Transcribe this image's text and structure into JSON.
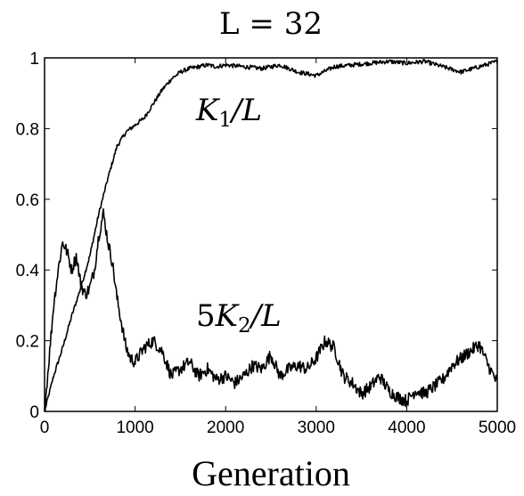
{
  "chart_data": {
    "type": "line",
    "title": "L = 32",
    "xlabel": "Generation",
    "ylabel": "",
    "xlim": [
      0,
      5000
    ],
    "ylim": [
      0,
      1
    ],
    "xticks": [
      0,
      1000,
      2000,
      3000,
      4000,
      5000
    ],
    "xtick_labels": [
      "0",
      "1000",
      "2000",
      "3000",
      "4000",
      "5000"
    ],
    "yticks": [
      0,
      0.2,
      0.4,
      0.6,
      0.8,
      1
    ],
    "ytick_labels": [
      "0",
      "0.2",
      "0.4",
      "0.6",
      "0.8",
      "1"
    ],
    "grid": false,
    "line_color": "#000000",
    "series": [
      {
        "annotation": "K1/L",
        "x": [
          0,
          100,
          200,
          300,
          400,
          500,
          600,
          700,
          800,
          900,
          1000,
          1100,
          1200,
          1300,
          1400,
          1500,
          1600,
          1700,
          1800,
          1900,
          2000,
          2200,
          2400,
          2600,
          2800,
          3000,
          3200,
          3400,
          3600,
          3800,
          4000,
          4200,
          4400,
          4600,
          4800,
          5000
        ],
        "y": [
          0.0,
          0.1,
          0.18,
          0.27,
          0.35,
          0.44,
          0.56,
          0.66,
          0.75,
          0.79,
          0.81,
          0.83,
          0.87,
          0.91,
          0.94,
          0.96,
          0.97,
          0.975,
          0.98,
          0.975,
          0.98,
          0.975,
          0.97,
          0.98,
          0.96,
          0.95,
          0.975,
          0.98,
          0.985,
          0.99,
          0.985,
          0.99,
          0.975,
          0.96,
          0.975,
          0.99
        ]
      },
      {
        "annotation": "5K2/L",
        "x": [
          0,
          50,
          100,
          150,
          200,
          250,
          300,
          350,
          400,
          450,
          500,
          550,
          600,
          650,
          700,
          750,
          800,
          850,
          900,
          950,
          1000,
          1100,
          1200,
          1300,
          1400,
          1500,
          1600,
          1700,
          1800,
          1900,
          2000,
          2100,
          2200,
          2300,
          2400,
          2500,
          2600,
          2700,
          2800,
          2900,
          3000,
          3100,
          3200,
          3300,
          3400,
          3500,
          3600,
          3700,
          3800,
          3900,
          4000,
          4100,
          4200,
          4300,
          4400,
          4500,
          4600,
          4700,
          4800,
          4900,
          5000
        ],
        "y": [
          0.0,
          0.15,
          0.3,
          0.4,
          0.48,
          0.45,
          0.4,
          0.44,
          0.36,
          0.33,
          0.35,
          0.4,
          0.5,
          0.56,
          0.48,
          0.42,
          0.32,
          0.25,
          0.18,
          0.15,
          0.14,
          0.18,
          0.2,
          0.17,
          0.1,
          0.12,
          0.14,
          0.1,
          0.12,
          0.09,
          0.1,
          0.08,
          0.1,
          0.13,
          0.12,
          0.16,
          0.1,
          0.12,
          0.13,
          0.12,
          0.15,
          0.2,
          0.18,
          0.1,
          0.08,
          0.05,
          0.07,
          0.1,
          0.06,
          0.04,
          0.03,
          0.06,
          0.05,
          0.07,
          0.09,
          0.13,
          0.15,
          0.17,
          0.19,
          0.13,
          0.08
        ]
      }
    ]
  }
}
